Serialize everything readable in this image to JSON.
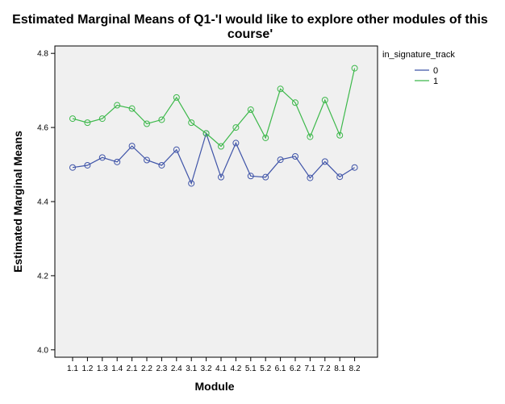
{
  "chart_data": {
    "type": "line",
    "title_lines": [
      "Estimated Marginal Means of Q1-'I would like to explore other modules of this",
      "course'"
    ],
    "xlabel": "Module",
    "ylabel": "Estimated Marginal Means",
    "categories": [
      "1.1",
      "1.2",
      "1.3",
      "1.4",
      "2.1",
      "2.2",
      "2.3",
      "2.4",
      "3.1",
      "3.2",
      "4.1",
      "4.2",
      "5.1",
      "5.2",
      "6.1",
      "6.2",
      "7.1",
      "7.2",
      "8.1",
      "8.2"
    ],
    "ylim": [
      3.98,
      4.82
    ],
    "yticks": [
      4.0,
      4.2,
      4.4,
      4.6,
      4.8
    ],
    "ytick_labels": [
      "4.0",
      "4.2",
      "4.4",
      "4.6",
      "4.8"
    ],
    "legend": {
      "title": "in_signature_track",
      "position": "right"
    },
    "series": [
      {
        "name": "0",
        "color": "#3f54a8",
        "values": [
          4.492,
          4.498,
          4.519,
          4.507,
          4.55,
          4.512,
          4.498,
          4.54,
          4.449,
          4.584,
          4.466,
          4.558,
          4.469,
          4.466,
          4.513,
          4.522,
          4.464,
          4.508,
          4.467,
          4.492
        ]
      },
      {
        "name": "1",
        "color": "#3cb84a",
        "values": [
          4.624,
          4.613,
          4.624,
          4.66,
          4.651,
          4.61,
          4.621,
          4.681,
          4.613,
          4.584,
          4.549,
          4.6,
          4.648,
          4.572,
          4.704,
          4.667,
          4.575,
          4.674,
          4.579,
          4.76
        ]
      }
    ]
  }
}
